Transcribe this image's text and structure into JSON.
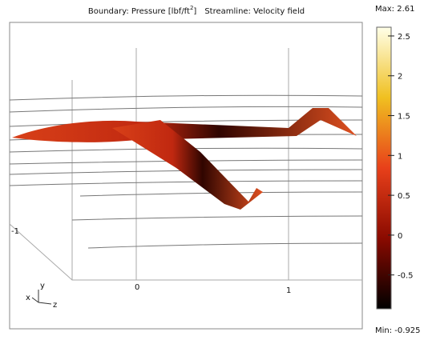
{
  "plot": {
    "title_parts": [
      "Boundary: Pressure [lbf/ft",
      "2",
      "]",
      "Streamline: Velocity field"
    ],
    "axis_ticks": [
      -1,
      0,
      1
    ],
    "triad": [
      "x",
      "y",
      "z"
    ]
  },
  "colorbar": {
    "max_text": "Max: 2.61",
    "min_text": "Min: -0.925",
    "max": 2.61,
    "min": -0.925,
    "ticks": [
      2.5,
      2,
      1.5,
      1,
      0.5,
      0,
      -0.5
    ]
  }
}
